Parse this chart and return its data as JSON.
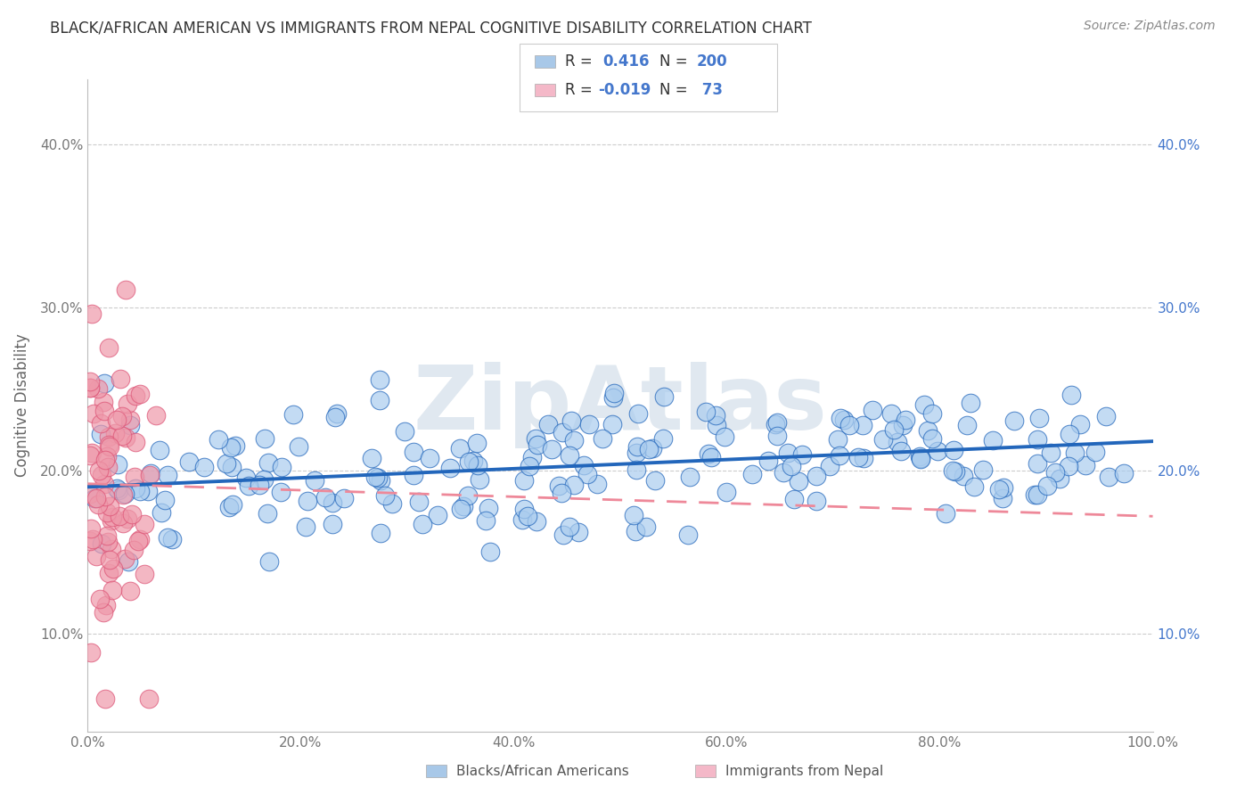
{
  "title": "BLACK/AFRICAN AMERICAN VS IMMIGRANTS FROM NEPAL COGNITIVE DISABILITY CORRELATION CHART",
  "source": "Source: ZipAtlas.com",
  "ylabel": "Cognitive Disability",
  "xlim": [
    0,
    1.0
  ],
  "ylim": [
    0.04,
    0.44
  ],
  "yticks": [
    0.1,
    0.2,
    0.3,
    0.4
  ],
  "ytick_labels": [
    "10.0%",
    "20.0%",
    "30.0%",
    "40.0%"
  ],
  "xticks": [
    0.0,
    0.2,
    0.4,
    0.6,
    0.8,
    1.0
  ],
  "xtick_labels": [
    "0.0%",
    "20.0%",
    "40.0%",
    "60.0%",
    "80.0%",
    "100.0%"
  ],
  "blue_R": 0.416,
  "blue_N": 200,
  "pink_R": -0.019,
  "pink_N": 73,
  "blue_legend_color": "#a8c8e8",
  "pink_legend_color": "#f4b8c8",
  "blue_line_color": "#2266bb",
  "pink_line_color": "#ee8899",
  "blue_scatter_color": "#aaccee",
  "pink_scatter_color": "#ee99aa",
  "blue_intercept": 0.19,
  "blue_slope": 0.028,
  "pink_intercept": 0.192,
  "pink_slope": -0.02,
  "background_color": "#ffffff",
  "grid_color": "#cccccc",
  "title_color": "#333333",
  "right_axis_color": "#4477cc",
  "watermark": "ZipAtlas",
  "watermark_color": "#e0e8f0",
  "legend_border_color": "#cccccc",
  "source_color": "#888888"
}
